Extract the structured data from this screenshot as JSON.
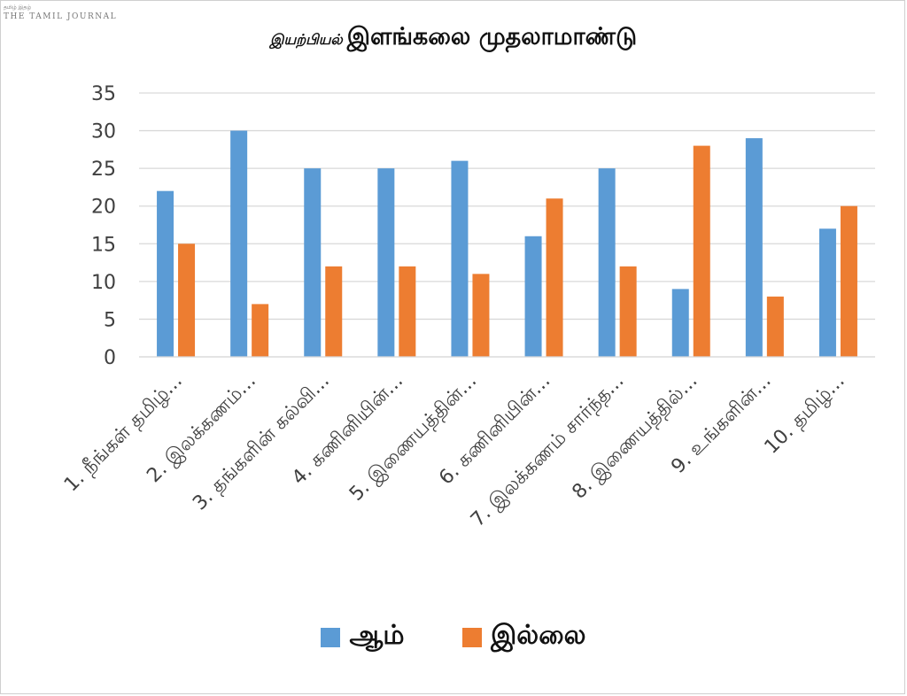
{
  "watermark": {
    "top": "தமிழ் இதழ்",
    "brand": "THE TAMIL JOURNAL"
  },
  "title": {
    "prefix": "இயற்பியல்",
    "main": "இளங்கலை முதலாமாண்டு"
  },
  "colors": {
    "series_yes": "#5b9bd5",
    "series_no": "#ed7d31",
    "grid": "#d9d9d9",
    "text": "#404040"
  },
  "chart_data": {
    "type": "bar",
    "title": "இயற்பியல் இளங்கலை முதலாமாண்டு",
    "categories": [
      "1. நீங்கள் தமிழ்...",
      "2. இலக்கணம்...",
      "3. தங்களின் கல்வி...",
      "4. கணினியின்...",
      "5. இணையத்தின்...",
      "6. கணினியின்...",
      "7. இலக்கணம் சார்ந்த...",
      "8. இணையத்தில்...",
      "9. உங்களின்...",
      "10. தமிழ்..."
    ],
    "series": [
      {
        "name": "ஆம்",
        "values": [
          22,
          30,
          25,
          25,
          26,
          16,
          25,
          9,
          29,
          17
        ]
      },
      {
        "name": "இல்லை",
        "values": [
          15,
          7,
          12,
          12,
          11,
          21,
          12,
          28,
          8,
          20
        ]
      }
    ],
    "ylim": [
      0,
      35
    ],
    "yticks": [
      0,
      5,
      10,
      15,
      20,
      25,
      30,
      35
    ],
    "grid": true,
    "legend": "bottom"
  }
}
